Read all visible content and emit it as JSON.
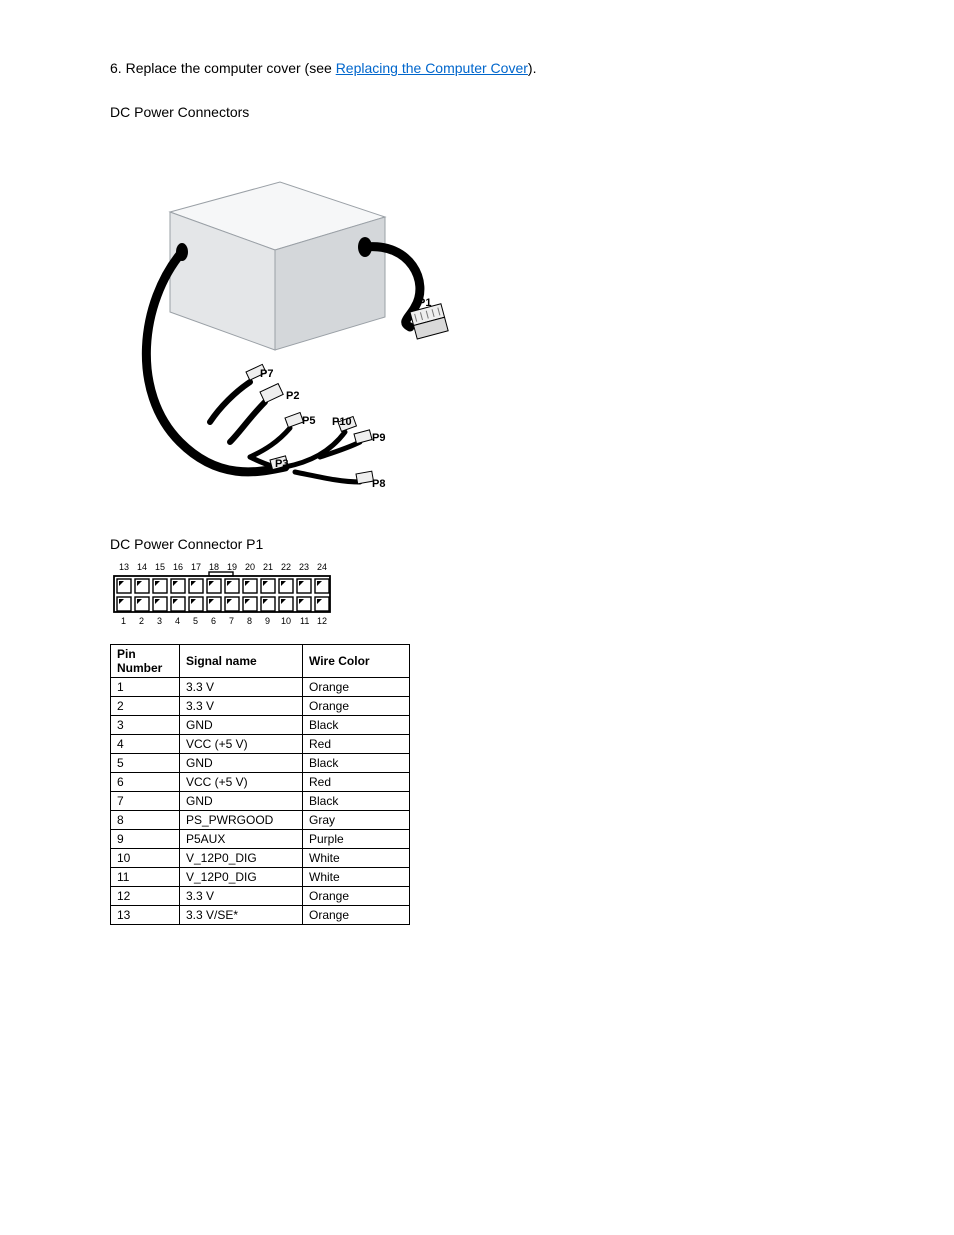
{
  "instructions": {
    "num": "6.",
    "text_before": "Replace the computer cover (see ",
    "link_text": "Replacing the Computer Cover",
    "text_after": ")."
  },
  "section_title": "DC Power Connectors",
  "conn_heading": "DC Power Connector P1",
  "labels": {
    "P1": "P1",
    "P2": "P2",
    "P3": "P3",
    "P5": "P5",
    "P7": "P7",
    "P8": "P8",
    "P9": "P9",
    "P10": "P10"
  },
  "pin_labels_top": [
    "13",
    "14",
    "15",
    "16",
    "17",
    "18",
    "19",
    "20",
    "21",
    "22",
    "23",
    "24"
  ],
  "pin_labels_bottom": [
    "1",
    "2",
    "3",
    "4",
    "5",
    "6",
    "7",
    "8",
    "9",
    "10",
    "11",
    "12"
  ],
  "table": {
    "headers": [
      "Pin Number",
      "Signal name",
      "Wire Color"
    ],
    "rows": [
      [
        "1",
        "3.3 V",
        "Orange"
      ],
      [
        "2",
        "3.3 V",
        "Orange"
      ],
      [
        "3",
        "GND",
        "Black"
      ],
      [
        "4",
        "VCC (+5 V)",
        "Red"
      ],
      [
        "5",
        "GND",
        "Black"
      ],
      [
        "6",
        "VCC (+5 V)",
        "Red"
      ],
      [
        "7",
        "GND",
        "Black"
      ],
      [
        "8",
        "PS_PWRGOOD",
        "Gray"
      ],
      [
        "9",
        "P5AUX",
        "Purple"
      ],
      [
        "10",
        "V_12P0_DIG",
        "White"
      ],
      [
        "11",
        "V_12P0_DIG",
        "White"
      ],
      [
        "12",
        "3.3 V",
        "Orange"
      ],
      [
        "13",
        "3.3 V/SE*",
        "Orange"
      ]
    ]
  },
  "colors": {
    "psu_top": "#f6f7f8",
    "psu_left": "#e4e6e8",
    "psu_right": "#d4d7da",
    "cable": "#000000",
    "conn_fill": "#eeeeee",
    "conn_stroke": "#000000"
  }
}
